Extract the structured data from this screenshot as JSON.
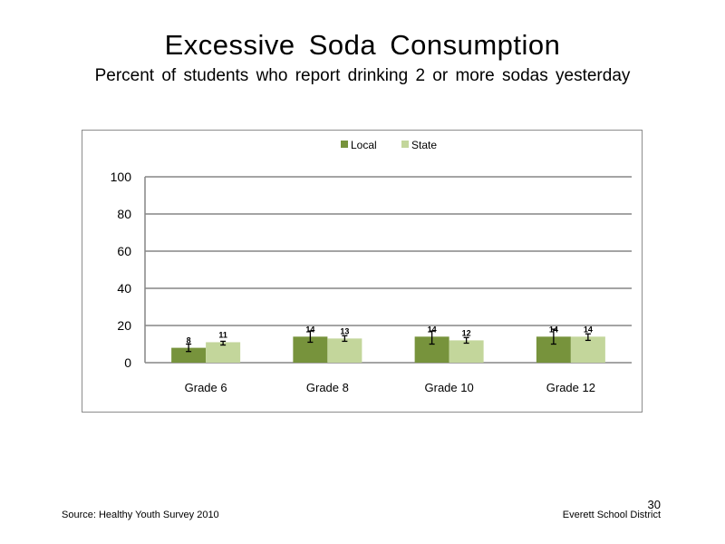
{
  "slide": {
    "title": "Excessive Soda Consumption",
    "subtitle": "Percent of students who report drinking 2 or more sodas yesterday",
    "source": "Source: Healthy Youth Survey 2010",
    "organization": "Everett School District",
    "page_number": "30"
  },
  "chart_data": {
    "type": "bar",
    "categories": [
      "Grade 6",
      "Grade 8",
      "Grade 10",
      "Grade 12"
    ],
    "series": [
      {
        "name": "Local",
        "color": "#77933c",
        "values": [
          8,
          14,
          14,
          14
        ],
        "labels": [
          "8",
          "14",
          "14",
          "14"
        ],
        "error_low": [
          6,
          11,
          10,
          10
        ],
        "error_high": [
          10,
          17,
          17,
          18
        ]
      },
      {
        "name": "State",
        "color": "#c3d69b",
        "values": [
          11,
          13,
          12,
          14
        ],
        "labels": [
          "11",
          "13",
          "12",
          "14"
        ],
        "error_low": [
          9.5,
          11.5,
          10.5,
          12
        ],
        "error_high": [
          11.5,
          14.5,
          13.5,
          15.5
        ]
      }
    ],
    "ylim": [
      0,
      100
    ],
    "yticks": [
      0,
      20,
      40,
      60,
      80,
      100
    ],
    "grid": true,
    "legend_position": "top"
  }
}
